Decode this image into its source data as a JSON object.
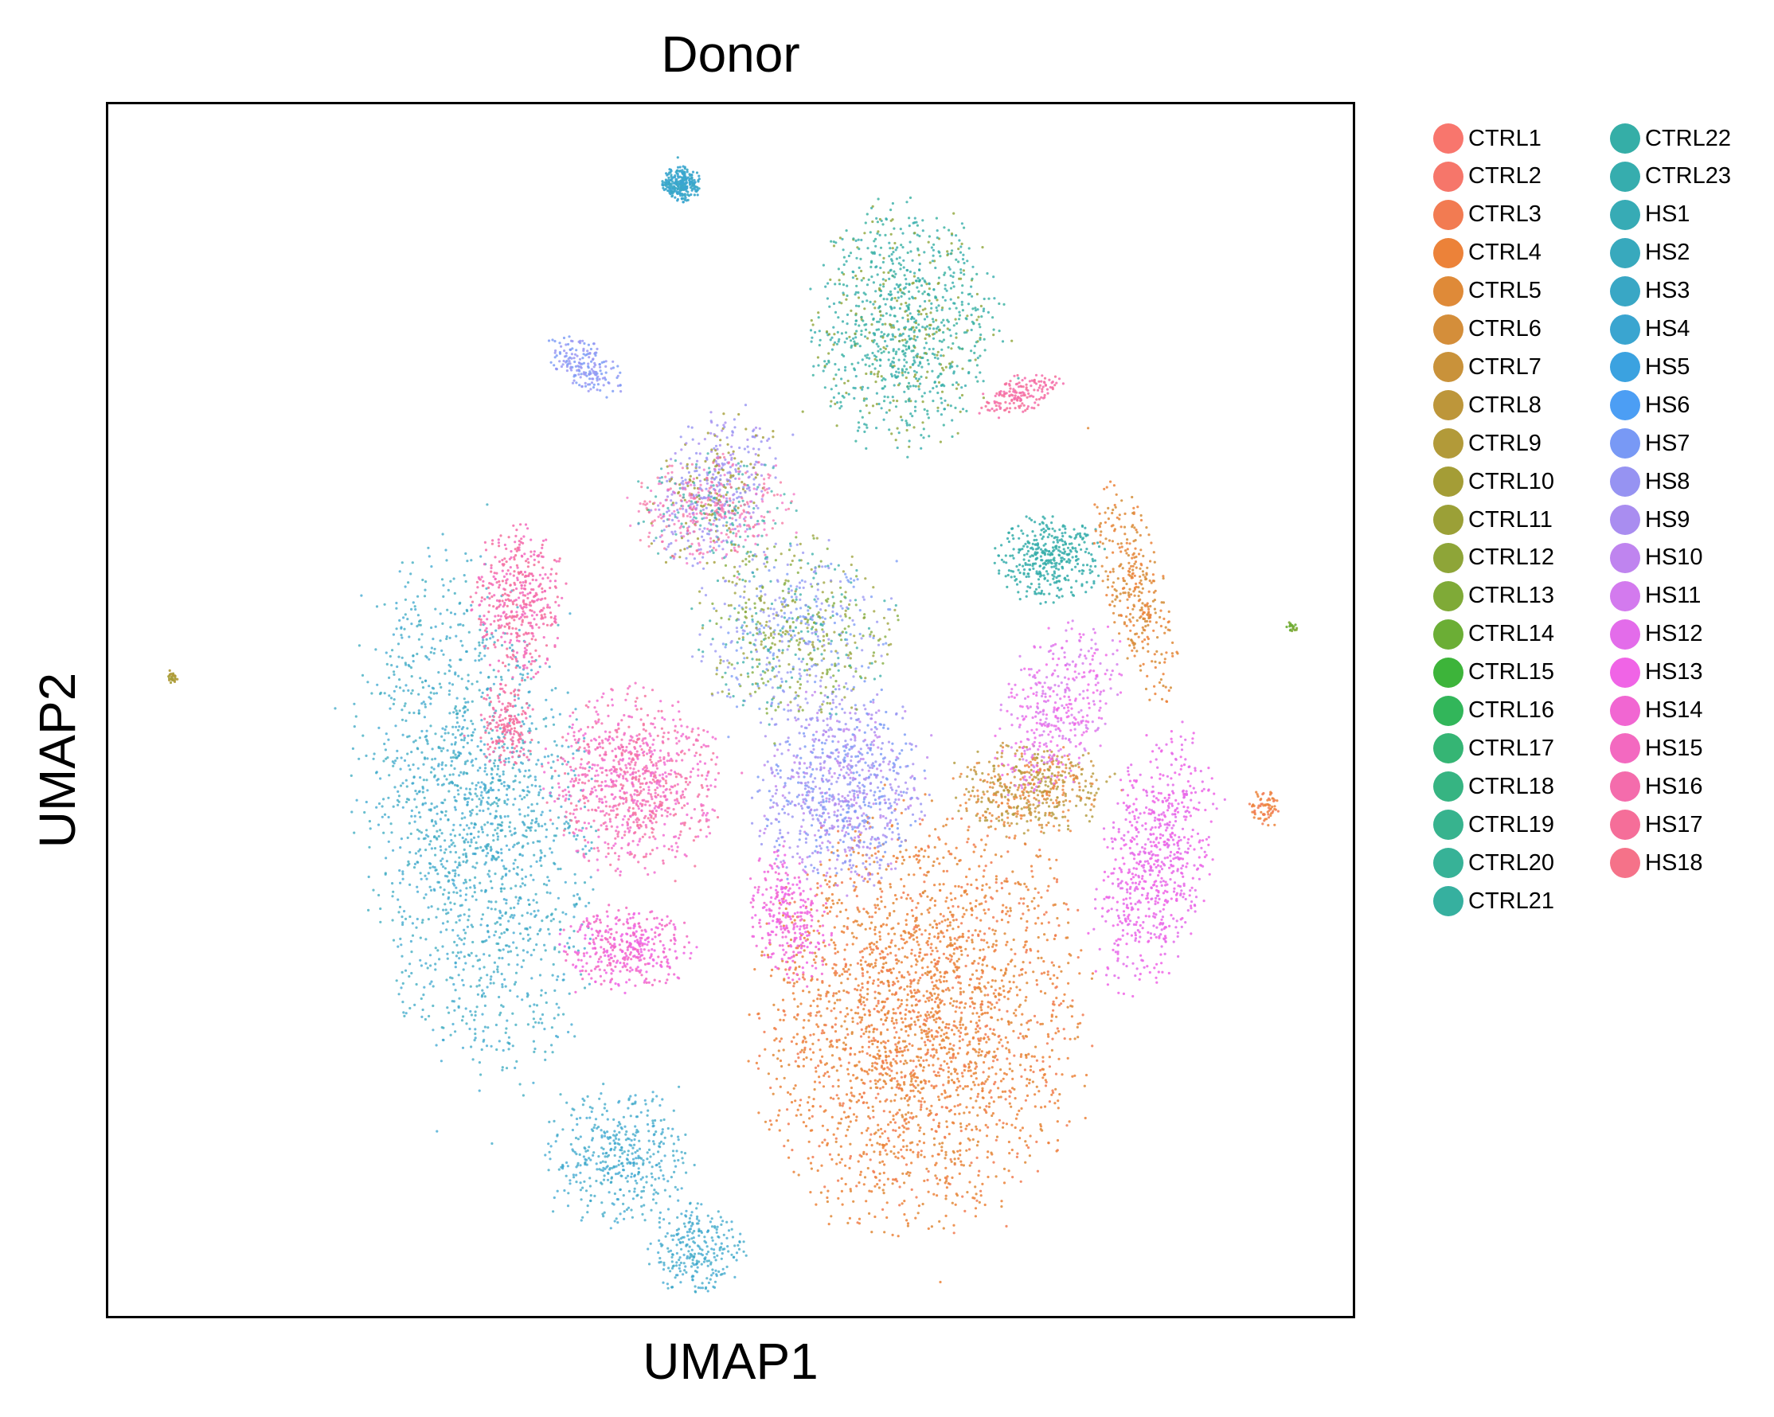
{
  "chart_data": {
    "type": "scatter",
    "title": "Donor",
    "xlabel": "UMAP1",
    "ylabel": "UMAP2",
    "xticks": [],
    "yticks": [],
    "grid": false,
    "legend_placement": "right-outside",
    "legend_columns": 2,
    "series": [
      {
        "name": "CTRL1",
        "color": "#f8766d"
      },
      {
        "name": "CTRL2",
        "color": "#f6766a"
      },
      {
        "name": "CTRL3",
        "color": "#f27b52"
      },
      {
        "name": "CTRL4",
        "color": "#ec8239"
      },
      {
        "name": "CTRL5",
        "color": "#df8a38"
      },
      {
        "name": "CTRL6",
        "color": "#d48e3a"
      },
      {
        "name": "CTRL7",
        "color": "#c9923a"
      },
      {
        "name": "CTRL8",
        "color": "#bd963a"
      },
      {
        "name": "CTRL9",
        "color": "#b29a39"
      },
      {
        "name": "CTRL10",
        "color": "#a49d36"
      },
      {
        "name": "CTRL11",
        "color": "#9ba037"
      },
      {
        "name": "CTRL12",
        "color": "#8ea538"
      },
      {
        "name": "CTRL13",
        "color": "#7faa37"
      },
      {
        "name": "CTRL14",
        "color": "#6bae35"
      },
      {
        "name": "CTRL15",
        "color": "#3db43a"
      },
      {
        "name": "CTRL16",
        "color": "#32b65a"
      },
      {
        "name": "CTRL17",
        "color": "#35b574"
      },
      {
        "name": "CTRL18",
        "color": "#36b482"
      },
      {
        "name": "CTRL19",
        "color": "#37b38e"
      },
      {
        "name": "CTRL20",
        "color": "#37b297"
      },
      {
        "name": "CTRL21",
        "color": "#36b09f"
      },
      {
        "name": "CTRL22",
        "color": "#35aea7"
      },
      {
        "name": "CTRL23",
        "color": "#36adae"
      },
      {
        "name": "HS1",
        "color": "#37abb5"
      },
      {
        "name": "HS2",
        "color": "#38a9bd"
      },
      {
        "name": "HS3",
        "color": "#39a7c5"
      },
      {
        "name": "HS4",
        "color": "#3aa5d0"
      },
      {
        "name": "HS5",
        "color": "#3ba2e0"
      },
      {
        "name": "HS6",
        "color": "#4c9ef4"
      },
      {
        "name": "HS7",
        "color": "#7899f5"
      },
      {
        "name": "HS8",
        "color": "#9693f2"
      },
      {
        "name": "HS9",
        "color": "#a98df0"
      },
      {
        "name": "HS10",
        "color": "#bf84ef"
      },
      {
        "name": "HS11",
        "color": "#d37aee"
      },
      {
        "name": "HS12",
        "color": "#e36cea"
      },
      {
        "name": "HS13",
        "color": "#f064e6"
      },
      {
        "name": "HS14",
        "color": "#f166d2"
      },
      {
        "name": "HS15",
        "color": "#f369c0"
      },
      {
        "name": "HS16",
        "color": "#f46cac"
      },
      {
        "name": "HS17",
        "color": "#f56e99"
      },
      {
        "name": "HS18",
        "color": "#f57289"
      }
    ]
  }
}
